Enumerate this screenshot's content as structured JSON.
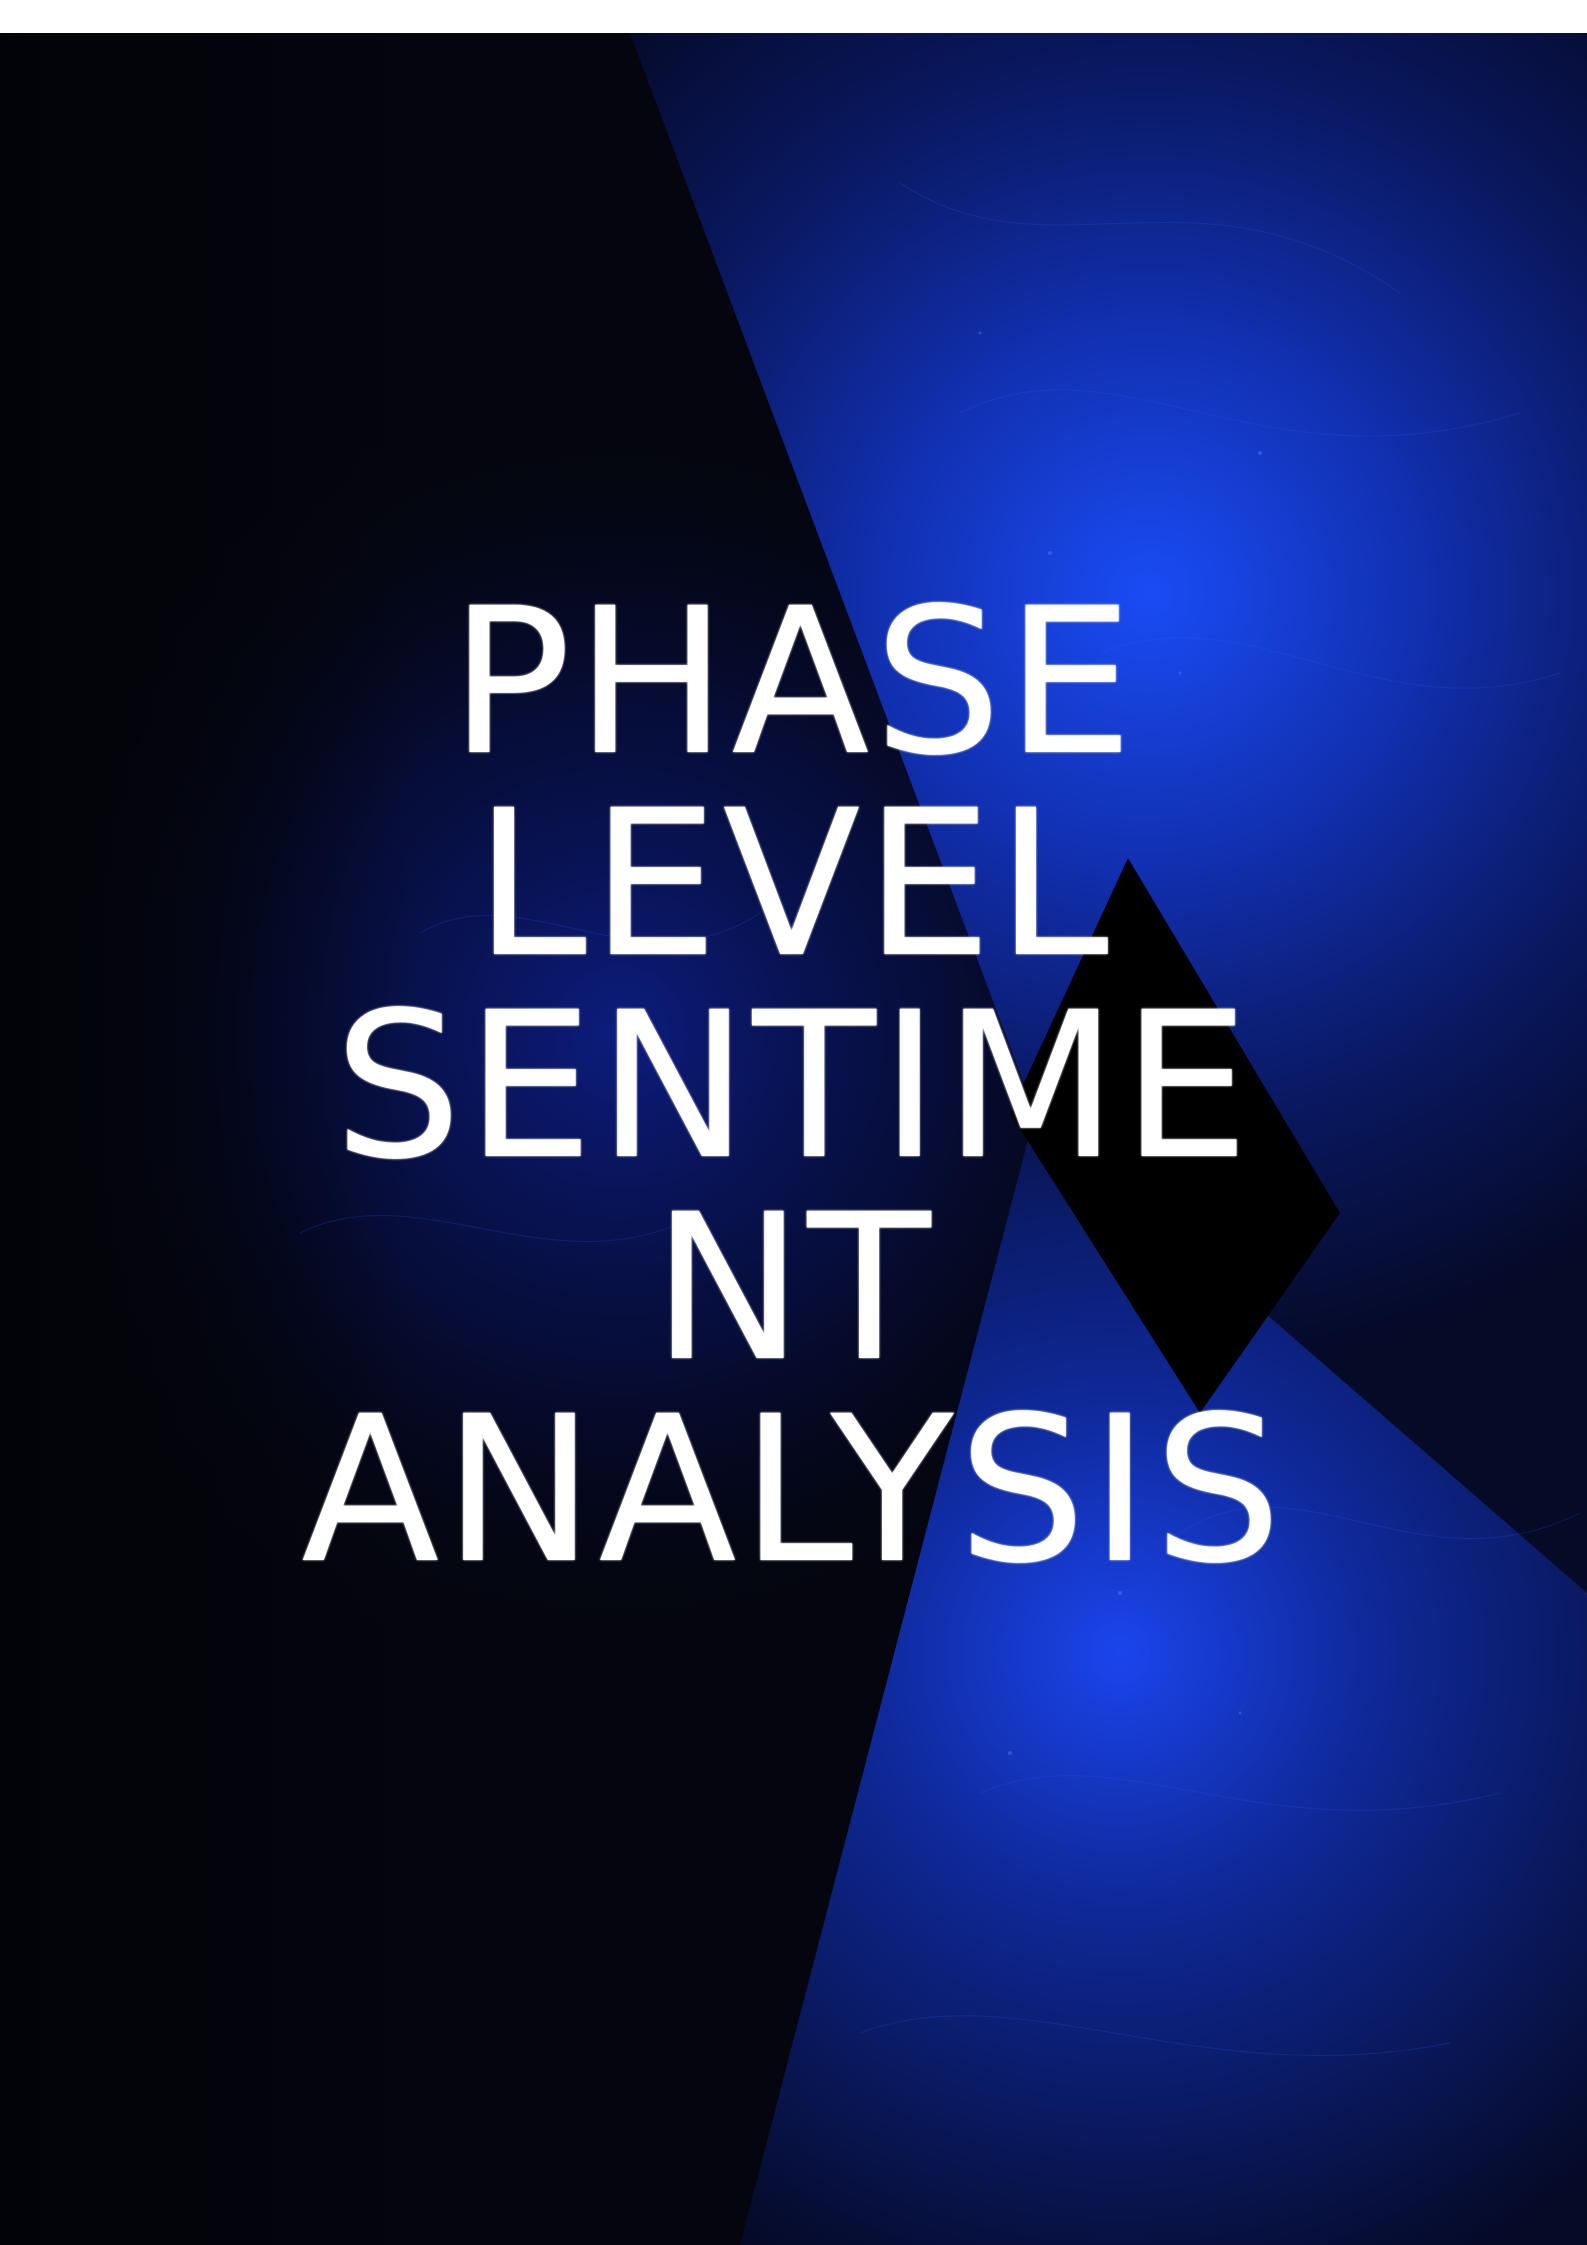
{
  "cover": {
    "title_lines": [
      "PHASE",
      "LEVEL",
      "SENTIME",
      "NT",
      "ANALYSIS"
    ]
  },
  "colors": {
    "background_dark": "#05060f",
    "accent_blue": "#1638d8",
    "title_text": "#ffffff"
  }
}
